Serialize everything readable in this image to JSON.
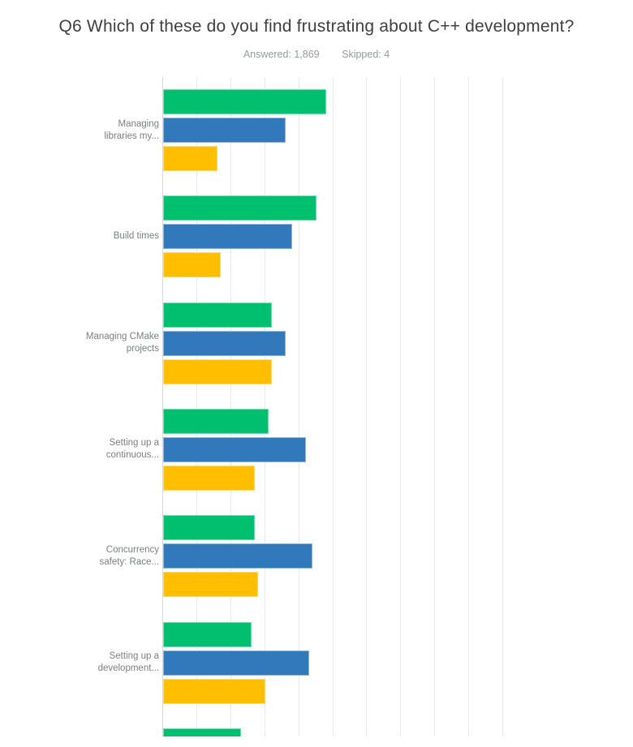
{
  "title": "Q6 Which of these do you find frustrating about C++ development?",
  "stats": {
    "answered": "Answered: 1,869",
    "skipped": "Skipped: 4"
  },
  "chart_data": {
    "type": "bar",
    "orientation": "horizontal",
    "title": "Q6 Which of these do you find frustrating about C++ development?",
    "answered": 1869,
    "skipped": 4,
    "x_axis": {
      "min": 0,
      "max": 100,
      "unit": "percent",
      "gridline_interval": 10,
      "tick_labels_visible": false
    },
    "legend_visible": false,
    "grid": true,
    "categories": [
      "Managing libraries my...",
      "Build times",
      "Managing CMake projects",
      "Setting up a continuous...",
      "Concurrency safety: Race...",
      "Setting up a development...",
      ""
    ],
    "series": [
      {
        "name": "series-green",
        "color": "#00BF6F",
        "values": [
          48,
          45,
          32,
          31,
          27,
          26,
          23
        ]
      },
      {
        "name": "series-blue",
        "color": "#3279BC",
        "values": [
          36,
          38,
          36,
          42,
          44,
          43,
          null
        ]
      },
      {
        "name": "series-yellow",
        "color": "#FFBE00",
        "values": [
          16,
          17,
          32,
          27,
          28,
          30,
          null
        ]
      }
    ],
    "last_row_partially_visible": true
  },
  "rows": [
    {
      "label_lines": [
        "Managing",
        "libraries my..."
      ]
    },
    {
      "label_lines": [
        "Build times"
      ]
    },
    {
      "label_lines": [
        "Managing CMake",
        "projects"
      ]
    },
    {
      "label_lines": [
        "Setting up a",
        "continuous..."
      ]
    },
    {
      "label_lines": [
        "Concurrency",
        "safety: Race..."
      ]
    },
    {
      "label_lines": [
        "Setting up a",
        "development..."
      ]
    },
    {
      "label_lines": []
    }
  ],
  "colors": {
    "green": "#00BF6F",
    "blue": "#3279BC",
    "yellow": "#FFBE00",
    "gridline": "#E9E9E9",
    "axis_line": "#D8D8D8",
    "title_text": "#3F3F3F",
    "subtitle_text": "#969B9E",
    "label_text": "#7B7E80",
    "background": "#FFFFFF"
  }
}
